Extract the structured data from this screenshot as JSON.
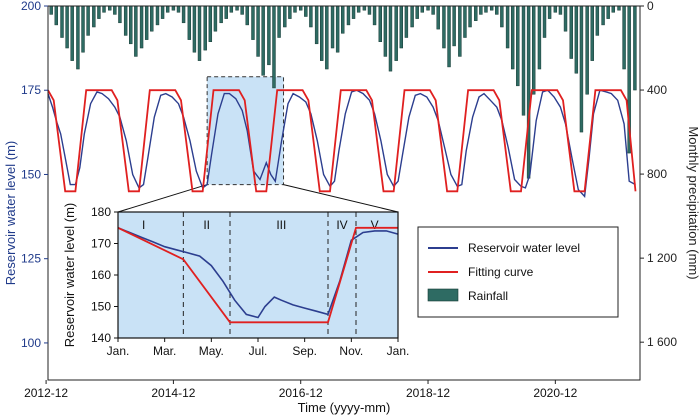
{
  "chart_data": [
    {
      "type": "line",
      "title": "",
      "xlabel": "Time (yyyy-mm)",
      "ylabel": "Reservoir water level (m)",
      "y2label": "Monthly precipitation (mm)",
      "xlim": [
        2012.95,
        2022.25
      ],
      "ylim": [
        89,
        200
      ],
      "y2lim": [
        0,
        1780
      ],
      "y2_inverted": true,
      "x_tick_values": [
        2012.92,
        2014.92,
        2016.92,
        2018.92,
        2020.92
      ],
      "x_tick_labels": [
        "2012-12",
        "2014-12",
        "2016-12",
        "2018-12",
        "2020-12"
      ],
      "y_tick_values": [
        100,
        125,
        150,
        175,
        200
      ],
      "y_tick_labels": [
        "100",
        "125",
        "150",
        "175",
        "200"
      ],
      "y2_tick_values": [
        0,
        400,
        800,
        1200,
        1600
      ],
      "y2_tick_labels": [
        "0",
        "400",
        "800",
        "1 200",
        "1 600"
      ],
      "legend_position": "center-right",
      "legend": [
        "Reservoir water level",
        "Fitting curve",
        "Rainfall"
      ],
      "colors": {
        "water_level": "#2c3e8f",
        "fitting": "#e02020",
        "rainfall": "#2e6b63",
        "rainfall_edge": "#173a35",
        "highlight": "#c9e2f6",
        "axis": "#1f3a8a"
      },
      "highlight_box": {
        "x_start": 2015.45,
        "x_end": 2016.65,
        "y_start": 147,
        "y_end": 179
      },
      "series": [
        {
          "name": "Reservoir water level",
          "style": "line",
          "x": [
            2012.95,
            2013.02,
            2013.08,
            2013.15,
            2013.22,
            2013.3,
            2013.38,
            2013.45,
            2013.52,
            2013.62,
            2013.72,
            2013.8,
            2013.9,
            2014.0,
            2014.08,
            2014.18,
            2014.28,
            2014.38,
            2014.45,
            2014.52,
            2014.62,
            2014.72,
            2014.8,
            2014.9,
            2015.0,
            2015.08,
            2015.18,
            2015.28,
            2015.38,
            2015.45,
            2015.52,
            2015.62,
            2015.72,
            2015.8,
            2015.9,
            2016.0,
            2016.08,
            2016.18,
            2016.28,
            2016.38,
            2016.45,
            2016.52,
            2016.62,
            2016.72,
            2016.8,
            2016.9,
            2017.0,
            2017.08,
            2017.18,
            2017.28,
            2017.38,
            2017.45,
            2017.52,
            2017.62,
            2017.72,
            2017.8,
            2017.9,
            2018.0,
            2018.08,
            2018.18,
            2018.28,
            2018.38,
            2018.45,
            2018.52,
            2018.62,
            2018.72,
            2018.8,
            2018.9,
            2019.0,
            2019.08,
            2019.18,
            2019.28,
            2019.38,
            2019.45,
            2019.52,
            2019.62,
            2019.72,
            2019.8,
            2019.9,
            2020.0,
            2020.08,
            2020.18,
            2020.28,
            2020.38,
            2020.45,
            2020.52,
            2020.62,
            2020.72,
            2020.8,
            2020.9,
            2021.0,
            2021.08,
            2021.18,
            2021.28,
            2021.38,
            2021.45,
            2021.52,
            2021.62,
            2021.72,
            2021.8,
            2021.9,
            2022.0,
            2022.08,
            2022.18
          ],
          "values": [
            174.0,
            170.0,
            166.0,
            162.0,
            155.0,
            147.0,
            147.0,
            152.0,
            162.0,
            171.0,
            174.5,
            174.0,
            172.5,
            170.0,
            167.0,
            160.0,
            150.0,
            146.0,
            147.0,
            155.0,
            167.0,
            173.5,
            174.0,
            173.0,
            171.0,
            167.0,
            160.0,
            151.0,
            146.0,
            147.0,
            156.0,
            168.0,
            174.0,
            174.0,
            172.5,
            169.0,
            163.0,
            151.0,
            148.5,
            153.5,
            150.0,
            148.0,
            160.0,
            171.0,
            174.0,
            173.0,
            171.5,
            168.0,
            160.0,
            150.0,
            146.5,
            148.0,
            157.0,
            168.0,
            174.5,
            175.0,
            174.0,
            172.0,
            168.0,
            160.0,
            150.0,
            146.5,
            148.0,
            156.0,
            167.0,
            173.5,
            174.0,
            173.0,
            170.0,
            166.0,
            158.0,
            150.0,
            146.5,
            147.0,
            157.0,
            167.0,
            173.0,
            174.0,
            172.0,
            170.0,
            166.0,
            158.0,
            148.5,
            146.5,
            146.0,
            150.0,
            166.0,
            174.5,
            175.0,
            173.0,
            170.0,
            165.0,
            155.0,
            145.5,
            143.5,
            155.0,
            168.0,
            175.0,
            174.5,
            174.0,
            172.0,
            165.0,
            148.0,
            147.0
          ]
        },
        {
          "name": "Fitting curve",
          "style": "line",
          "x": [
            2012.95,
            2013.04,
            2013.22,
            2013.38,
            2013.55,
            2013.72,
            2013.95,
            2014.04,
            2014.22,
            2014.38,
            2014.55,
            2014.72,
            2014.95,
            2015.04,
            2015.22,
            2015.38,
            2015.55,
            2015.72,
            2015.95,
            2016.04,
            2016.22,
            2016.38,
            2016.55,
            2016.72,
            2016.95,
            2017.04,
            2017.22,
            2017.38,
            2017.55,
            2017.72,
            2017.95,
            2018.04,
            2018.22,
            2018.38,
            2018.55,
            2018.72,
            2018.95,
            2019.04,
            2019.22,
            2019.38,
            2019.55,
            2019.72,
            2019.95,
            2020.04,
            2020.22,
            2020.38,
            2020.55,
            2020.72,
            2020.95,
            2021.04,
            2021.22,
            2021.38,
            2021.55,
            2021.72,
            2021.95,
            2022.04,
            2022.18
          ],
          "values": [
            175,
            172,
            145,
            145,
            175,
            175,
            175,
            172,
            145,
            145,
            175,
            175,
            175,
            172,
            145,
            145,
            175,
            175,
            175,
            172,
            145,
            145,
            175,
            175,
            175,
            172,
            145,
            145,
            175,
            175,
            175,
            172,
            145,
            145,
            175,
            175,
            175,
            172,
            145,
            145,
            175,
            175,
            175,
            172,
            145,
            145,
            175,
            175,
            175,
            172,
            145,
            145,
            175,
            175,
            175,
            172,
            145
          ]
        },
        {
          "name": "Rainfall",
          "style": "bar",
          "axis": "y2",
          "x": [
            2013.0,
            2013.08,
            2013.17,
            2013.25,
            2013.33,
            2013.42,
            2013.5,
            2013.58,
            2013.67,
            2013.75,
            2013.83,
            2013.92,
            2014.0,
            2014.08,
            2014.17,
            2014.25,
            2014.33,
            2014.42,
            2014.5,
            2014.58,
            2014.67,
            2014.75,
            2014.83,
            2014.92,
            2015.0,
            2015.08,
            2015.17,
            2015.25,
            2015.33,
            2015.42,
            2015.5,
            2015.58,
            2015.67,
            2015.75,
            2015.83,
            2015.92,
            2016.0,
            2016.08,
            2016.17,
            2016.25,
            2016.33,
            2016.42,
            2016.5,
            2016.58,
            2016.67,
            2016.75,
            2016.83,
            2016.92,
            2017.0,
            2017.08,
            2017.17,
            2017.25,
            2017.33,
            2017.42,
            2017.5,
            2017.58,
            2017.67,
            2017.75,
            2017.83,
            2017.92,
            2018.0,
            2018.08,
            2018.17,
            2018.25,
            2018.33,
            2018.42,
            2018.5,
            2018.58,
            2018.67,
            2018.75,
            2018.83,
            2018.92,
            2019.0,
            2019.08,
            2019.17,
            2019.25,
            2019.33,
            2019.42,
            2019.5,
            2019.58,
            2019.67,
            2019.75,
            2019.83,
            2019.92,
            2020.0,
            2020.08,
            2020.17,
            2020.25,
            2020.33,
            2020.42,
            2020.5,
            2020.58,
            2020.67,
            2020.75,
            2020.83,
            2020.92,
            2021.0,
            2021.08,
            2021.17,
            2021.25,
            2021.33,
            2021.42,
            2021.5,
            2021.58,
            2021.67,
            2021.75,
            2021.83,
            2021.92,
            2022.0,
            2022.08,
            2022.17
          ],
          "values": [
            40,
            90,
            150,
            200,
            260,
            300,
            220,
            140,
            100,
            60,
            30,
            20,
            40,
            80,
            140,
            180,
            240,
            200,
            160,
            120,
            90,
            60,
            30,
            20,
            30,
            80,
            160,
            220,
            260,
            210,
            170,
            120,
            80,
            60,
            30,
            20,
            40,
            90,
            160,
            240,
            330,
            280,
            390,
            150,
            100,
            60,
            30,
            20,
            50,
            100,
            180,
            260,
            300,
            200,
            220,
            130,
            90,
            60,
            30,
            20,
            40,
            90,
            170,
            240,
            310,
            260,
            200,
            150,
            100,
            60,
            30,
            20,
            40,
            110,
            200,
            290,
            190,
            240,
            150,
            100,
            70,
            40,
            30,
            20,
            40,
            100,
            200,
            300,
            380,
            520,
            820,
            420,
            300,
            150,
            60,
            30,
            40,
            120,
            250,
            320,
            600,
            420,
            260,
            140,
            90,
            60,
            30,
            20,
            300,
            700,
            400
          ]
        }
      ]
    },
    {
      "type": "line",
      "title": "",
      "xlabel": "",
      "ylabel": "Reservoir water level (m)",
      "xlim": [
        0,
        12
      ],
      "ylim": [
        140,
        180
      ],
      "x_tick_values": [
        0,
        2,
        4,
        6,
        8,
        10,
        12
      ],
      "x_tick_labels": [
        "Jan.",
        "Mar.",
        "May.",
        "Jul.",
        "Sep.",
        "Nov.",
        "Jan."
      ],
      "y_tick_values": [
        140,
        150,
        160,
        170,
        180
      ],
      "y_tick_labels": [
        "140",
        "150",
        "160",
        "170",
        "180"
      ],
      "phase_boundaries": [
        2.8,
        4.8,
        9.0,
        10.2
      ],
      "phase_labels": [
        "I",
        "II",
        "III",
        "IV",
        "V"
      ],
      "phase_label_x": [
        1.1,
        3.8,
        7.0,
        9.6,
        11.0
      ],
      "series": [
        {
          "name": "Reservoir water level",
          "x": [
            0,
            0.5,
            1,
            1.5,
            2,
            2.5,
            3,
            3.5,
            4,
            4.5,
            5,
            5.5,
            6,
            6.3,
            6.7,
            7,
            7.5,
            8,
            8.5,
            9,
            9.5,
            10,
            10.5,
            11,
            11.5,
            12
          ],
          "values": [
            175,
            173.5,
            172,
            170.5,
            169,
            168,
            167,
            166,
            163,
            158,
            152,
            147.5,
            146.5,
            150,
            153,
            152,
            150.5,
            149.5,
            148.5,
            147.5,
            158,
            171,
            173.5,
            174,
            174,
            173
          ]
        },
        {
          "name": "Fitting curve",
          "x": [
            0,
            2.8,
            4.8,
            9.0,
            10.2,
            12
          ],
          "values": [
            175,
            165,
            145,
            145,
            175,
            175
          ]
        }
      ]
    }
  ]
}
